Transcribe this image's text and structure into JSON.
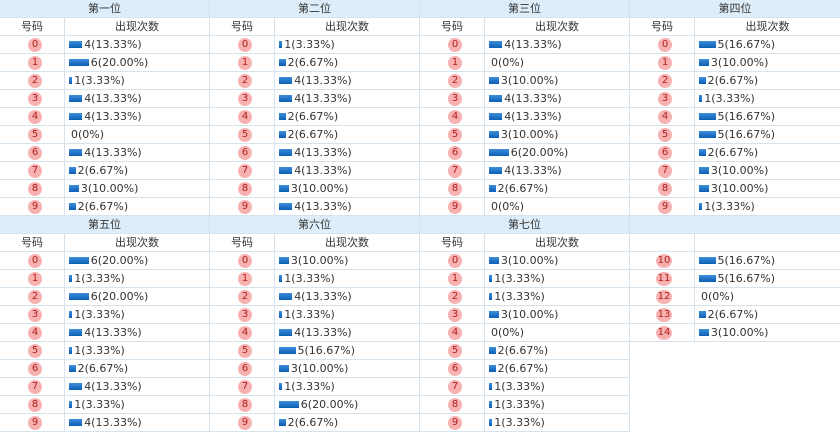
{
  "panels": [
    {
      "title": "第一位",
      "headers": [
        "号码",
        "出现次数"
      ],
      "rows": [
        {
          "num": "0",
          "count": 4,
          "label": "4(13.33%)"
        },
        {
          "num": "1",
          "count": 6,
          "label": "6(20.00%)"
        },
        {
          "num": "2",
          "count": 1,
          "label": "1(3.33%)"
        },
        {
          "num": "3",
          "count": 4,
          "label": "4(13.33%)"
        },
        {
          "num": "4",
          "count": 4,
          "label": "4(13.33%)"
        },
        {
          "num": "5",
          "count": 0,
          "label": "0(0%)"
        },
        {
          "num": "6",
          "count": 4,
          "label": "4(13.33%)"
        },
        {
          "num": "7",
          "count": 2,
          "label": "2(6.67%)"
        },
        {
          "num": "8",
          "count": 3,
          "label": "3(10.00%)"
        },
        {
          "num": "9",
          "count": 2,
          "label": "2(6.67%)"
        }
      ]
    },
    {
      "title": "第二位",
      "headers": [
        "号码",
        "出现次数"
      ],
      "rows": [
        {
          "num": "0",
          "count": 1,
          "label": "1(3.33%)"
        },
        {
          "num": "1",
          "count": 2,
          "label": "2(6.67%)"
        },
        {
          "num": "2",
          "count": 4,
          "label": "4(13.33%)"
        },
        {
          "num": "3",
          "count": 4,
          "label": "4(13.33%)"
        },
        {
          "num": "4",
          "count": 2,
          "label": "2(6.67%)"
        },
        {
          "num": "5",
          "count": 2,
          "label": "2(6.67%)"
        },
        {
          "num": "6",
          "count": 4,
          "label": "4(13.33%)"
        },
        {
          "num": "7",
          "count": 4,
          "label": "4(13.33%)"
        },
        {
          "num": "8",
          "count": 3,
          "label": "3(10.00%)"
        },
        {
          "num": "9",
          "count": 4,
          "label": "4(13.33%)"
        }
      ]
    },
    {
      "title": "第三位",
      "headers": [
        "号码",
        "出现次数"
      ],
      "rows": [
        {
          "num": "0",
          "count": 4,
          "label": "4(13.33%)"
        },
        {
          "num": "1",
          "count": 0,
          "label": "0(0%)"
        },
        {
          "num": "2",
          "count": 3,
          "label": "3(10.00%)"
        },
        {
          "num": "3",
          "count": 4,
          "label": "4(13.33%)"
        },
        {
          "num": "4",
          "count": 4,
          "label": "4(13.33%)"
        },
        {
          "num": "5",
          "count": 3,
          "label": "3(10.00%)"
        },
        {
          "num": "6",
          "count": 6,
          "label": "6(20.00%)"
        },
        {
          "num": "7",
          "count": 4,
          "label": "4(13.33%)"
        },
        {
          "num": "8",
          "count": 2,
          "label": "2(6.67%)"
        },
        {
          "num": "9",
          "count": 0,
          "label": "0(0%)"
        }
      ]
    },
    {
      "title": "第四位",
      "headers": [
        "号码",
        "出现次数"
      ],
      "rows": [
        {
          "num": "0",
          "count": 5,
          "label": "5(16.67%)"
        },
        {
          "num": "1",
          "count": 3,
          "label": "3(10.00%)"
        },
        {
          "num": "2",
          "count": 2,
          "label": "2(6.67%)"
        },
        {
          "num": "3",
          "count": 1,
          "label": "1(3.33%)"
        },
        {
          "num": "4",
          "count": 5,
          "label": "5(16.67%)"
        },
        {
          "num": "5",
          "count": 5,
          "label": "5(16.67%)"
        },
        {
          "num": "6",
          "count": 2,
          "label": "2(6.67%)"
        },
        {
          "num": "7",
          "count": 3,
          "label": "3(10.00%)"
        },
        {
          "num": "8",
          "count": 3,
          "label": "3(10.00%)"
        },
        {
          "num": "9",
          "count": 1,
          "label": "1(3.33%)"
        }
      ]
    },
    {
      "title": "第五位",
      "headers": [
        "号码",
        "出现次数"
      ],
      "rows": [
        {
          "num": "0",
          "count": 6,
          "label": "6(20.00%)"
        },
        {
          "num": "1",
          "count": 1,
          "label": "1(3.33%)"
        },
        {
          "num": "2",
          "count": 6,
          "label": "6(20.00%)"
        },
        {
          "num": "3",
          "count": 1,
          "label": "1(3.33%)"
        },
        {
          "num": "4",
          "count": 4,
          "label": "4(13.33%)"
        },
        {
          "num": "5",
          "count": 1,
          "label": "1(3.33%)"
        },
        {
          "num": "6",
          "count": 2,
          "label": "2(6.67%)"
        },
        {
          "num": "7",
          "count": 4,
          "label": "4(13.33%)"
        },
        {
          "num": "8",
          "count": 1,
          "label": "1(3.33%)"
        },
        {
          "num": "9",
          "count": 4,
          "label": "4(13.33%)"
        }
      ]
    },
    {
      "title": "第六位",
      "headers": [
        "号码",
        "出现次数"
      ],
      "rows": [
        {
          "num": "0",
          "count": 3,
          "label": "3(10.00%)"
        },
        {
          "num": "1",
          "count": 1,
          "label": "1(3.33%)"
        },
        {
          "num": "2",
          "count": 4,
          "label": "4(13.33%)"
        },
        {
          "num": "3",
          "count": 1,
          "label": "1(3.33%)"
        },
        {
          "num": "4",
          "count": 4,
          "label": "4(13.33%)"
        },
        {
          "num": "5",
          "count": 5,
          "label": "5(16.67%)"
        },
        {
          "num": "6",
          "count": 3,
          "label": "3(10.00%)"
        },
        {
          "num": "7",
          "count": 1,
          "label": "1(3.33%)"
        },
        {
          "num": "8",
          "count": 6,
          "label": "6(20.00%)"
        },
        {
          "num": "9",
          "count": 2,
          "label": "2(6.67%)"
        }
      ]
    },
    {
      "title": "第七位",
      "headers": [
        "号码",
        "出现次数"
      ],
      "rows": [
        {
          "num": "0",
          "count": 3,
          "label": "3(10.00%)"
        },
        {
          "num": "1",
          "count": 1,
          "label": "1(3.33%)"
        },
        {
          "num": "2",
          "count": 1,
          "label": "1(3.33%)"
        },
        {
          "num": "3",
          "count": 3,
          "label": "3(10.00%)"
        },
        {
          "num": "4",
          "count": 0,
          "label": "0(0%)"
        },
        {
          "num": "5",
          "count": 2,
          "label": "2(6.67%)"
        },
        {
          "num": "6",
          "count": 2,
          "label": "2(6.67%)"
        },
        {
          "num": "7",
          "count": 1,
          "label": "1(3.33%)"
        },
        {
          "num": "8",
          "count": 1,
          "label": "1(3.33%)"
        },
        {
          "num": "9",
          "count": 1,
          "label": "1(3.33%)"
        }
      ]
    },
    {
      "rows": [
        {
          "num": "10",
          "count": 5,
          "label": "5(16.67%)"
        },
        {
          "num": "11",
          "count": 5,
          "label": "5(16.67%)"
        },
        {
          "num": "12",
          "count": 0,
          "label": "0(0%)"
        },
        {
          "num": "13",
          "count": 2,
          "label": "2(6.67%)"
        },
        {
          "num": "14",
          "count": 3,
          "label": "3(10.00%)"
        }
      ]
    }
  ]
}
